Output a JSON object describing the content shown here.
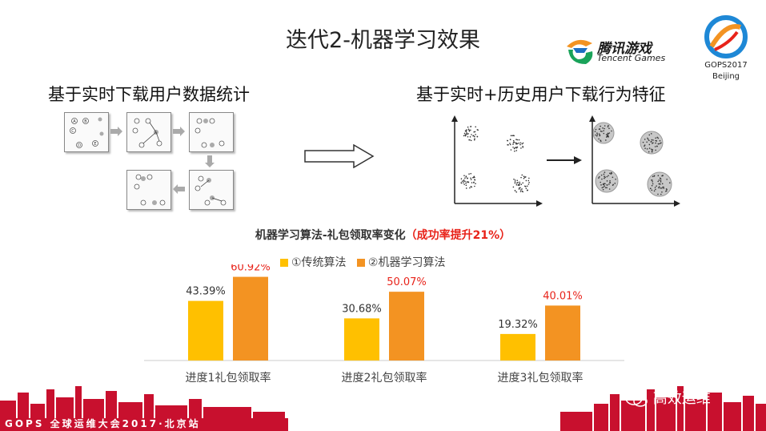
{
  "header": {
    "title": "迭代2-机器学习效果",
    "left_subtitle": "基于实时下载用户数据统计",
    "right_subtitle": "基于实时+历史用户下载行为特征"
  },
  "logos": {
    "tencent_cn": "腾讯游戏",
    "tencent_en": "Tencent Games",
    "gops_line1": "GOPS2017",
    "gops_line2": "Beijing"
  },
  "diagram": {
    "node_labels": [
      "A",
      "B",
      "C",
      "D",
      "E"
    ]
  },
  "chart_data": {
    "type": "bar",
    "title": "机器学习算法-礼包领取率变化",
    "title_highlight": "（成功率提升21%）",
    "categories": [
      "进度1礼包领取率",
      "进度2礼包领取率",
      "进度3礼包领取率"
    ],
    "series": [
      {
        "name": "①传统算法",
        "values": [
          43.39,
          30.68,
          19.32
        ],
        "color": "#ffc000",
        "label_color": "#333333"
      },
      {
        "name": "②机器学习算法",
        "values": [
          60.92,
          50.07,
          40.01
        ],
        "color": "#f39322",
        "label_color": "#e8231a"
      }
    ],
    "value_labels": [
      [
        "43.39%",
        "30.68%",
        "19.32%"
      ],
      [
        "60.92%",
        "50.07%",
        "40.01%"
      ]
    ],
    "ylim": [
      0,
      70
    ],
    "grid": false,
    "legend": "top"
  },
  "footer": {
    "event": "GOPS 全球运维大会2017·北京站",
    "wechat": "高效运维"
  },
  "colors": {
    "accent_red": "#e8231a",
    "skyline_red": "#c8102e"
  }
}
